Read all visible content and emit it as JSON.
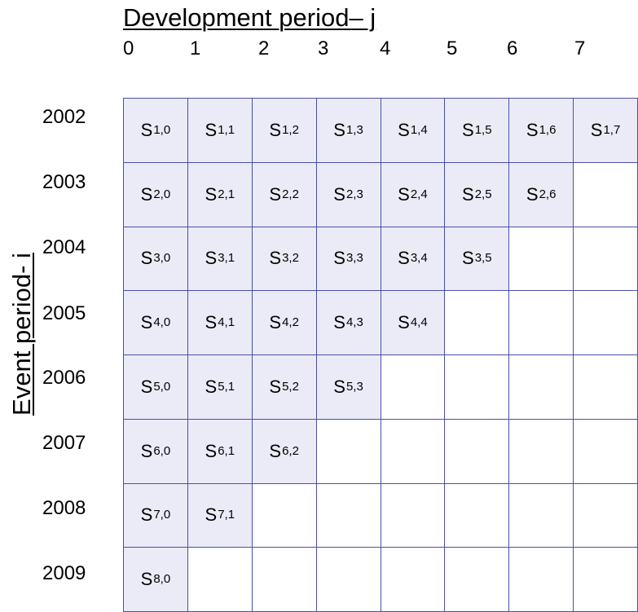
{
  "colors": {
    "grid_line": "#4a4fa8",
    "filled_cell": "#ebebf8",
    "empty_cell": "#ffffff"
  },
  "development_axis": {
    "title": "Development period– j",
    "labels": [
      "0",
      "1",
      "2",
      "3",
      "4",
      "5",
      "6",
      "7"
    ]
  },
  "event_axis": {
    "title": "Event period- i",
    "labels": [
      "2002",
      "2003",
      "2004",
      "2005",
      "2006",
      "2007",
      "2008",
      "2009"
    ]
  },
  "cells": [
    [
      {
        "main": "S",
        "sub": "1,0"
      },
      {
        "main": "S",
        "sub": "1,1"
      },
      {
        "main": "S",
        "sub": "1,2"
      },
      {
        "main": "S",
        "sub": "1,3"
      },
      {
        "main": "S",
        "sub": "1,4"
      },
      {
        "main": "S",
        "sub": "1,5"
      },
      {
        "main": "S",
        "sub": "1,6"
      },
      {
        "main": "S",
        "sub": "1,7"
      }
    ],
    [
      {
        "main": "S",
        "sub": "2,0"
      },
      {
        "main": "S",
        "sub": "2,1"
      },
      {
        "main": "S",
        "sub": "2,2"
      },
      {
        "main": "S",
        "sub": "2,3"
      },
      {
        "main": "S",
        "sub": "2,4"
      },
      {
        "main": "S",
        "sub": "2,5"
      },
      {
        "main": "S",
        "sub": "2,6"
      },
      null
    ],
    [
      {
        "main": "S",
        "sub": "3,0"
      },
      {
        "main": "S",
        "sub": "3,1"
      },
      {
        "main": "S",
        "sub": "3,2"
      },
      {
        "main": "S",
        "sub": "3,3"
      },
      {
        "main": "S",
        "sub": "3,4"
      },
      {
        "main": "S",
        "sub": "3,5"
      },
      null,
      null
    ],
    [
      {
        "main": "S",
        "sub": "4,0"
      },
      {
        "main": "S",
        "sub": "4,1"
      },
      {
        "main": "S",
        "sub": "4,2"
      },
      {
        "main": "S",
        "sub": "4,3"
      },
      {
        "main": "S",
        "sub": "4,4"
      },
      null,
      null,
      null
    ],
    [
      {
        "main": "S",
        "sub": "5,0"
      },
      {
        "main": "S",
        "sub": "5,1"
      },
      {
        "main": "S",
        "sub": "5,2"
      },
      {
        "main": "S",
        "sub": "5,3"
      },
      null,
      null,
      null,
      null
    ],
    [
      {
        "main": "S",
        "sub": "6,0"
      },
      {
        "main": "S",
        "sub": "6,1"
      },
      {
        "main": "S",
        "sub": "6,2"
      },
      null,
      null,
      null,
      null,
      null
    ],
    [
      {
        "main": "S",
        "sub": "7,0"
      },
      {
        "main": "S",
        "sub": "7,1"
      },
      null,
      null,
      null,
      null,
      null,
      null
    ],
    [
      {
        "main": "S",
        "sub": "8,0"
      },
      null,
      null,
      null,
      null,
      null,
      null,
      null
    ]
  ]
}
